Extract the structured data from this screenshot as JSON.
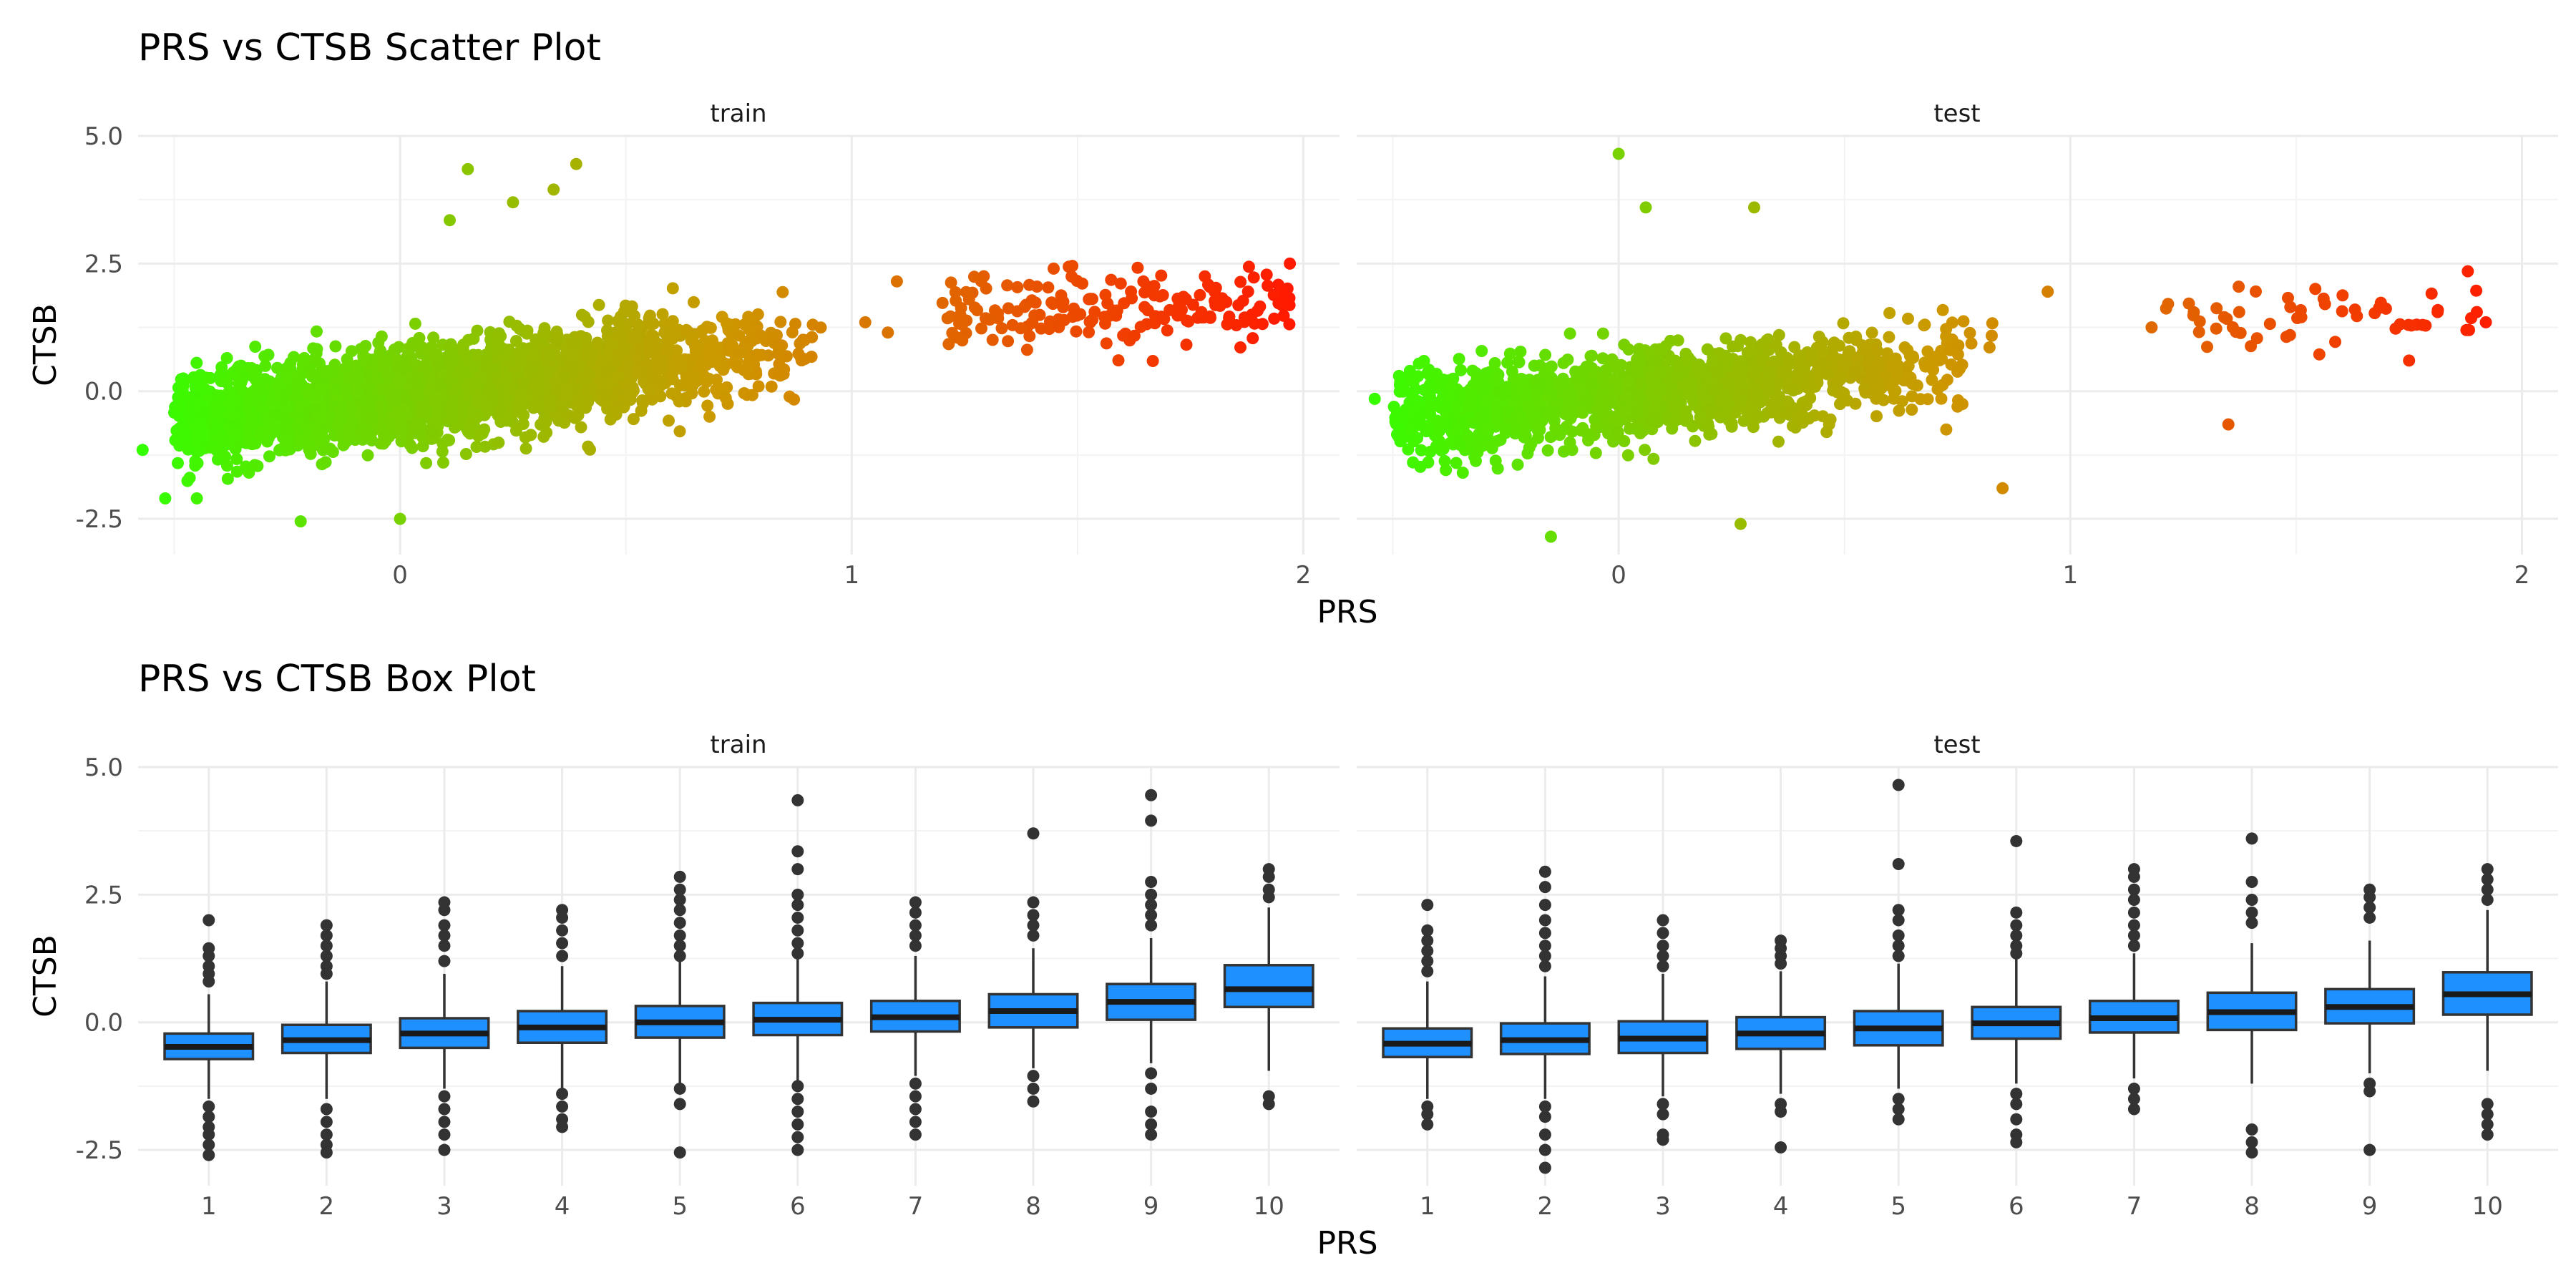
{
  "chart_data": [
    {
      "type": "scatter",
      "title": "PRS vs CTSB Scatter Plot",
      "xlabel": "PRS",
      "ylabel": "CTSB",
      "xlim": [
        -0.58,
        2.08
      ],
      "ylim": [
        -3.2,
        5.0
      ],
      "x_ticks": [
        "0",
        "1",
        "2"
      ],
      "y_ticks": [
        "-2.5",
        "0.0",
        "2.5",
        "5.0"
      ],
      "color_scale": {
        "low": "#33ff00",
        "mid": "#cc9900",
        "high": "#ff1a00"
      },
      "grid": true,
      "panels": [
        {
          "name": "train",
          "cluster": {
            "x_range": [
              -0.5,
              0.95
            ],
            "slope": 1.1,
            "intercept": -0.05,
            "spread": 0.45,
            "n": 2600
          },
          "high_group": {
            "x_range": [
              1.2,
              1.97
            ],
            "y_center": 1.55,
            "spread": 0.35,
            "n": 190
          },
          "notable_points": [
            {
              "x": -0.57,
              "y": -1.15
            },
            {
              "x": -0.52,
              "y": -2.1
            },
            {
              "x": -0.45,
              "y": -2.1
            },
            {
              "x": 0.15,
              "y": 4.35
            },
            {
              "x": 0.25,
              "y": 3.7
            },
            {
              "x": 0.34,
              "y": 3.95
            },
            {
              "x": 0.39,
              "y": 4.45
            },
            {
              "x": 0.11,
              "y": 3.35
            },
            {
              "x": -0.22,
              "y": -2.55
            },
            {
              "x": 0.0,
              "y": -2.5
            },
            {
              "x": 1.03,
              "y": 1.35
            },
            {
              "x": 1.08,
              "y": 1.15
            },
            {
              "x": 1.1,
              "y": 2.15
            },
            {
              "x": 1.97,
              "y": 2.5
            },
            {
              "x": 1.96,
              "y": 1.8
            }
          ]
        },
        {
          "name": "test",
          "cluster": {
            "x_range": [
              -0.5,
              0.85
            ],
            "slope": 1.0,
            "intercept": -0.1,
            "spread": 0.42,
            "n": 1500
          },
          "high_group": {
            "x_range": [
              1.2,
              1.9
            ],
            "y_center": 1.45,
            "spread": 0.3,
            "n": 55
          },
          "notable_points": [
            {
              "x": -0.54,
              "y": -0.15
            },
            {
              "x": 0.0,
              "y": 4.65
            },
            {
              "x": 0.06,
              "y": 3.6
            },
            {
              "x": 0.3,
              "y": 3.6
            },
            {
              "x": 0.27,
              "y": -2.6
            },
            {
              "x": -0.15,
              "y": -2.85
            },
            {
              "x": 0.85,
              "y": -1.9
            },
            {
              "x": 0.95,
              "y": 1.95
            },
            {
              "x": 1.35,
              "y": -0.65
            },
            {
              "x": 1.88,
              "y": 2.35
            },
            {
              "x": 1.92,
              "y": 1.35
            },
            {
              "x": 1.9,
              "y": 1.55
            },
            {
              "x": 1.75,
              "y": 0.6
            },
            {
              "x": 1.18,
              "y": 1.25
            }
          ]
        }
      ]
    },
    {
      "type": "box",
      "title": "PRS vs CTSB Box Plot",
      "xlabel": "PRS",
      "ylabel": "CTSB",
      "ylim": [
        -3.2,
        5.0
      ],
      "categories": [
        "1",
        "2",
        "3",
        "4",
        "5",
        "6",
        "7",
        "8",
        "9",
        "10"
      ],
      "y_ticks": [
        "-2.5",
        "0.0",
        "2.5",
        "5.0"
      ],
      "box_color": "#1e90ff",
      "grid": true,
      "panels": [
        {
          "name": "train",
          "boxes": [
            {
              "q1": -0.72,
              "median": -0.48,
              "q3": -0.22,
              "lo": -1.5,
              "hi": 0.55,
              "outliers": [
                2.0,
                1.45,
                1.3,
                1.1,
                0.95,
                0.8,
                -1.65,
                -1.85,
                -2.05,
                -2.2,
                -2.4,
                -2.6
              ]
            },
            {
              "q1": -0.6,
              "median": -0.35,
              "q3": -0.05,
              "lo": -1.5,
              "hi": 0.8,
              "outliers": [
                1.9,
                1.7,
                1.5,
                1.3,
                1.1,
                0.95,
                -1.7,
                -1.95,
                -2.2,
                -2.4,
                -2.55
              ]
            },
            {
              "q1": -0.5,
              "median": -0.22,
              "q3": 0.08,
              "lo": -1.3,
              "hi": 0.95,
              "outliers": [
                2.35,
                2.2,
                1.9,
                1.7,
                1.5,
                1.2,
                -1.45,
                -1.7,
                -1.95,
                -2.2,
                -2.5
              ]
            },
            {
              "q1": -0.4,
              "median": -0.1,
              "q3": 0.22,
              "lo": -1.3,
              "hi": 1.1,
              "outliers": [
                2.2,
                2.05,
                1.8,
                1.55,
                1.3,
                -1.4,
                -1.65,
                -1.9,
                -2.05
              ]
            },
            {
              "q1": -0.3,
              "median": 0.0,
              "q3": 0.32,
              "lo": -1.2,
              "hi": 1.2,
              "outliers": [
                2.85,
                2.6,
                2.4,
                2.2,
                1.95,
                1.7,
                1.5,
                1.3,
                -1.3,
                -1.6,
                -2.55
              ]
            },
            {
              "q1": -0.25,
              "median": 0.05,
              "q3": 0.38,
              "lo": -1.15,
              "hi": 1.25,
              "outliers": [
                4.35,
                3.35,
                3.0,
                2.5,
                2.3,
                2.05,
                1.8,
                1.55,
                1.35,
                -1.25,
                -1.5,
                -1.75,
                -2.0,
                -2.25,
                -2.5
              ]
            },
            {
              "q1": -0.18,
              "median": 0.1,
              "q3": 0.42,
              "lo": -1.05,
              "hi": 1.3,
              "outliers": [
                2.35,
                2.15,
                1.9,
                1.7,
                1.5,
                -1.2,
                -1.45,
                -1.7,
                -1.95,
                -2.2
              ]
            },
            {
              "q1": -0.1,
              "median": 0.22,
              "q3": 0.55,
              "lo": -0.9,
              "hi": 1.45,
              "outliers": [
                3.7,
                2.35,
                2.1,
                1.9,
                1.7,
                -1.05,
                -1.3,
                -1.55
              ]
            },
            {
              "q1": 0.05,
              "median": 0.4,
              "q3": 0.75,
              "lo": -0.8,
              "hi": 1.65,
              "outliers": [
                4.45,
                3.95,
                2.75,
                2.5,
                2.3,
                2.1,
                1.9,
                -1.0,
                -1.3,
                -1.75,
                -2.0,
                -2.2
              ]
            },
            {
              "q1": 0.3,
              "median": 0.65,
              "q3": 1.12,
              "lo": -0.95,
              "hi": 2.25,
              "outliers": [
                3.0,
                2.85,
                2.6,
                2.45,
                -1.45,
                -1.6
              ]
            }
          ]
        },
        {
          "name": "test",
          "boxes": [
            {
              "q1": -0.68,
              "median": -0.42,
              "q3": -0.12,
              "lo": -1.5,
              "hi": 0.8,
              "outliers": [
                2.3,
                1.8,
                1.6,
                1.4,
                1.2,
                1.0,
                -1.65,
                -1.8,
                -2.0
              ]
            },
            {
              "q1": -0.62,
              "median": -0.35,
              "q3": -0.02,
              "lo": -1.5,
              "hi": 0.9,
              "outliers": [
                2.95,
                2.65,
                2.3,
                2.0,
                1.75,
                1.5,
                1.3,
                1.1,
                -1.65,
                -1.85,
                -2.2,
                -2.5,
                -2.85
              ]
            },
            {
              "q1": -0.6,
              "median": -0.32,
              "q3": 0.02,
              "lo": -1.45,
              "hi": 0.95,
              "outliers": [
                2.0,
                1.75,
                1.5,
                1.3,
                1.1,
                -1.6,
                -1.8,
                -2.2,
                -2.3
              ]
            },
            {
              "q1": -0.52,
              "median": -0.22,
              "q3": 0.1,
              "lo": -1.4,
              "hi": 1.0,
              "outliers": [
                1.6,
                1.45,
                1.3,
                1.15,
                -1.6,
                -1.75,
                -2.45
              ]
            },
            {
              "q1": -0.45,
              "median": -0.12,
              "q3": 0.22,
              "lo": -1.3,
              "hi": 1.15,
              "outliers": [
                4.65,
                3.1,
                2.2,
                2.0,
                1.7,
                1.5,
                1.3,
                -1.5,
                -1.7,
                -1.9
              ]
            },
            {
              "q1": -0.32,
              "median": -0.02,
              "q3": 0.3,
              "lo": -1.2,
              "hi": 1.25,
              "outliers": [
                3.55,
                2.15,
                1.9,
                1.7,
                1.5,
                1.35,
                -1.4,
                -1.6,
                -1.9,
                -2.2,
                -2.35
              ]
            },
            {
              "q1": -0.2,
              "median": 0.08,
              "q3": 0.42,
              "lo": -1.1,
              "hi": 1.35,
              "outliers": [
                3.0,
                2.85,
                2.6,
                2.4,
                2.15,
                1.9,
                1.7,
                1.5,
                -1.3,
                -1.5,
                -1.7
              ]
            },
            {
              "q1": -0.15,
              "median": 0.2,
              "q3": 0.58,
              "lo": -1.2,
              "hi": 1.55,
              "outliers": [
                3.6,
                2.75,
                2.4,
                2.15,
                1.95,
                -2.1,
                -2.35,
                -2.55
              ]
            },
            {
              "q1": -0.02,
              "median": 0.3,
              "q3": 0.65,
              "lo": -1.0,
              "hi": 1.6,
              "outliers": [
                2.6,
                2.45,
                2.25,
                2.05,
                -1.2,
                -1.35,
                -2.5
              ]
            },
            {
              "q1": 0.15,
              "median": 0.55,
              "q3": 0.98,
              "lo": -0.95,
              "hi": 2.2,
              "outliers": [
                3.0,
                2.8,
                2.6,
                2.4,
                -1.6,
                -1.8,
                -2.0,
                -2.2
              ]
            }
          ]
        }
      ]
    }
  ]
}
